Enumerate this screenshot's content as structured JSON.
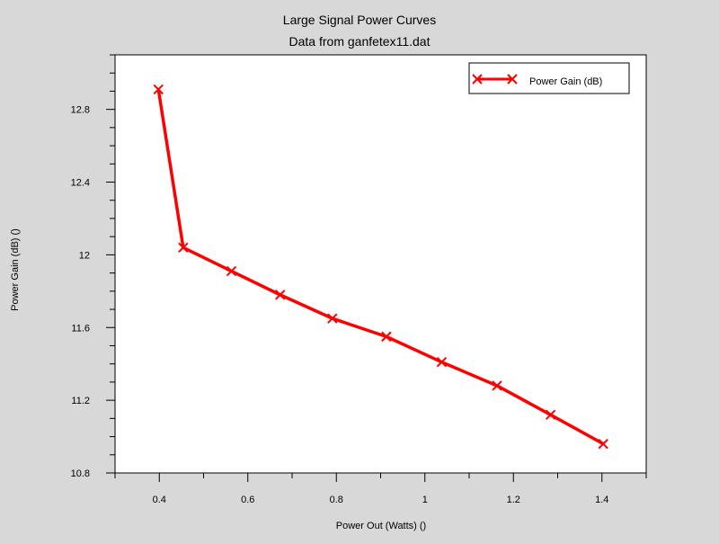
{
  "chart_data": {
    "type": "line",
    "title": "Large Signal Power Curves",
    "subtitle": "Data from ganfetex11.dat",
    "xlabel": "Power Out (Watts) ()",
    "ylabel": "Power Gain (dB) ()",
    "xlim": [
      0.3,
      1.5
    ],
    "ylim": [
      10.8,
      13.1
    ],
    "x_ticks": [
      0.4,
      0.6,
      0.8,
      1,
      1.2,
      1.4
    ],
    "x_tick_labels": [
      "0.4",
      "0.6",
      "0.8",
      "1",
      "1.2",
      "1.4"
    ],
    "y_ticks": [
      10.8,
      11.2,
      11.6,
      12,
      12.4,
      12.8
    ],
    "y_tick_labels": [
      "10.8",
      "11.2",
      "11.6",
      "12",
      "12.4",
      "12.8"
    ],
    "grid": false,
    "legend_position": "top-right",
    "series": [
      {
        "name": "Power Gain (dB)",
        "color": "#ff0000",
        "marker": "x",
        "x": [
          0.398,
          0.454,
          0.563,
          0.673,
          0.791,
          0.913,
          1.038,
          1.163,
          1.284,
          1.403
        ],
        "y": [
          12.91,
          12.04,
          11.91,
          11.78,
          11.65,
          11.55,
          11.41,
          11.28,
          11.12,
          10.96
        ]
      }
    ]
  }
}
